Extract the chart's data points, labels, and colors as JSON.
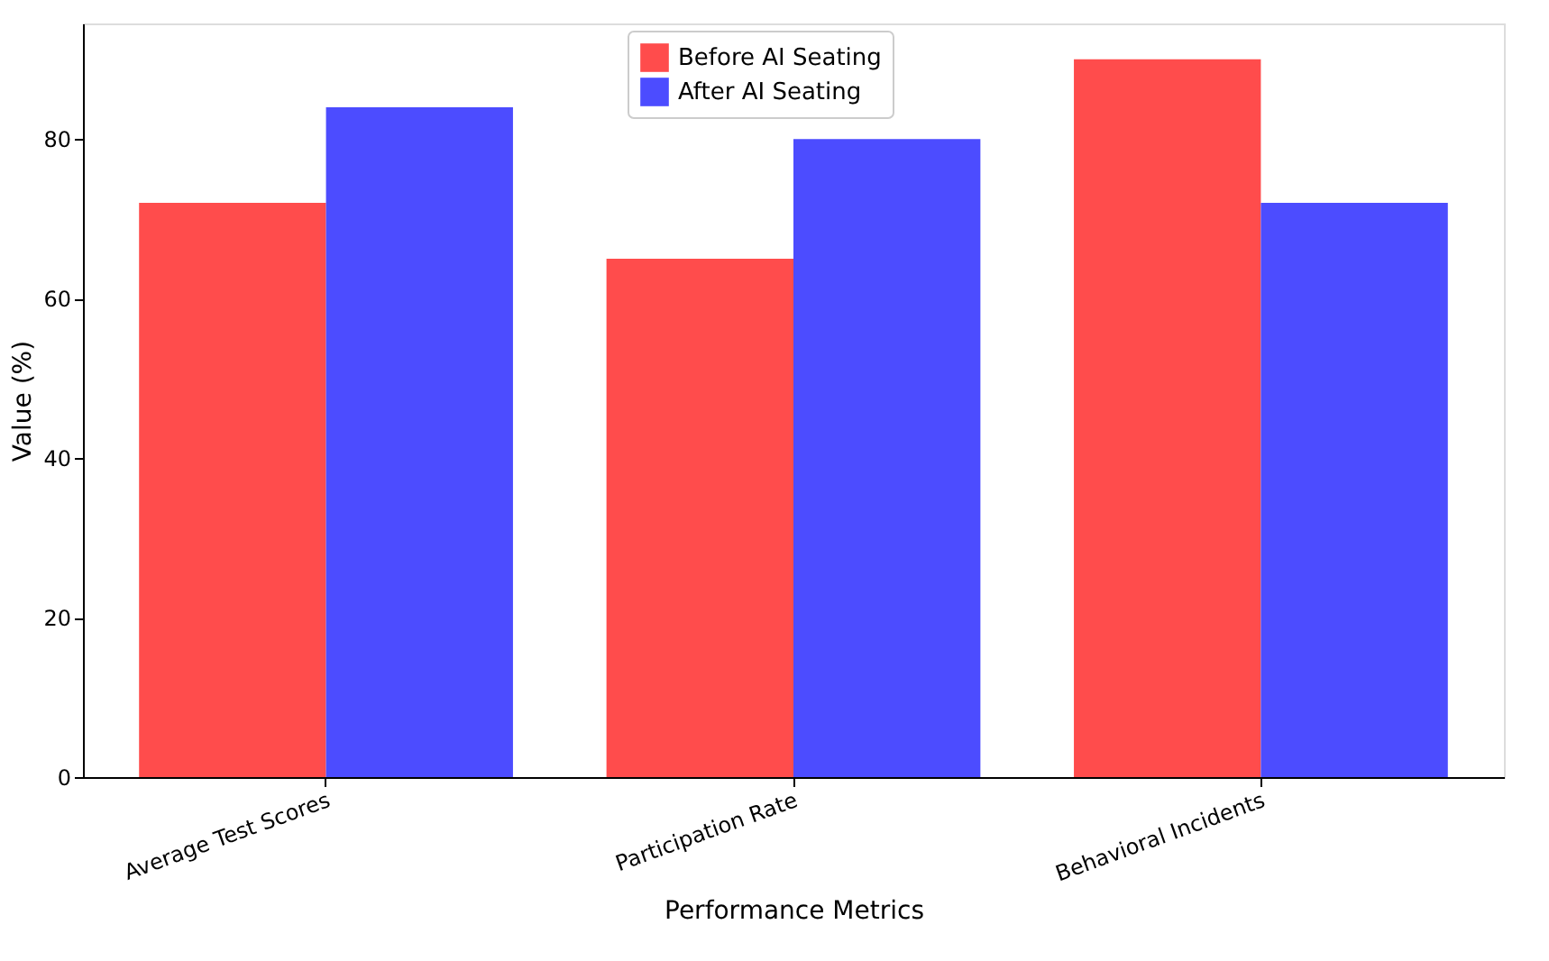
{
  "chart_data": {
    "type": "bar",
    "xlabel": "Performance Metrics",
    "ylabel": "Value (%)",
    "categories": [
      "Average Test Scores",
      "Participation Rate",
      "Behavioral Incidents"
    ],
    "series": [
      {
        "name": "Before AI Seating",
        "color": "#ff4c4c",
        "values": [
          72,
          65,
          90
        ]
      },
      {
        "name": "After AI Seating",
        "color": "#4c4cff",
        "values": [
          84,
          80,
          72
        ]
      }
    ],
    "ylim": [
      0,
      94.5
    ],
    "yticks": [
      0,
      20,
      40,
      60,
      80
    ],
    "grid": false,
    "legend": "top"
  }
}
